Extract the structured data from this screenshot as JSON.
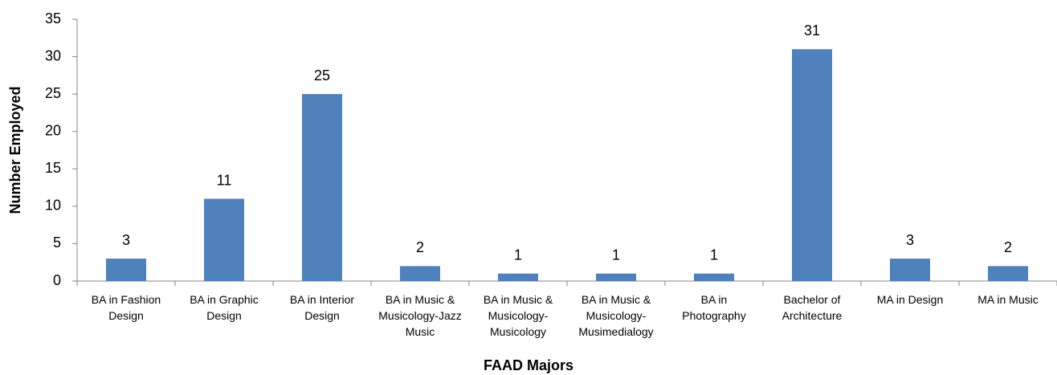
{
  "chart_data": {
    "type": "bar",
    "x_label": "FAAD Majors",
    "y_label": "Number Employed",
    "categories": [
      "BA in Fashion Design",
      "BA in Graphic Design",
      "BA in Interior Design",
      "BA in Music & Musicology-Jazz Music",
      "BA in Music & Musicology-Musicology",
      "BA in Music & Musicology-Musimedialogy",
      "BA in Photography",
      "Bachelor of Architecture",
      "MA in Design",
      "MA in Music"
    ],
    "values": [
      3,
      11,
      25,
      2,
      1,
      1,
      1,
      31,
      3,
      2
    ],
    "color": "#4f81bd",
    "ylim": [
      0,
      35
    ],
    "yticks": [
      0,
      5,
      10,
      15,
      20,
      25,
      30,
      35
    ],
    "grid": false
  }
}
